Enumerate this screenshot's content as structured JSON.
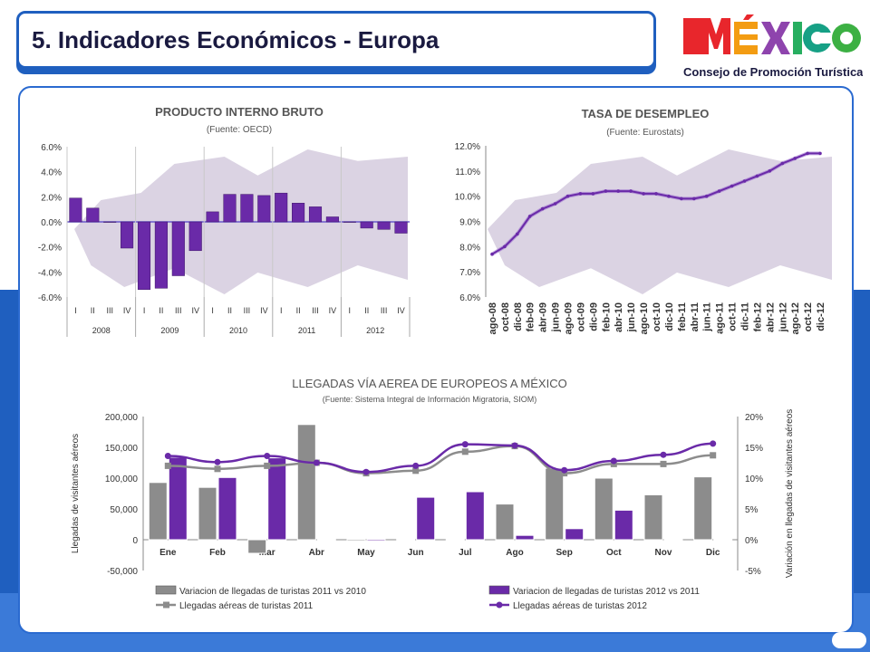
{
  "header": {
    "title": "5. Indicadores Económicos - Europa",
    "logo_word": "MÉXICO",
    "logo_sub": "Consejo de Promoción Turística"
  },
  "colors": {
    "primary_blue": "#1f5fbf",
    "purple": "#6a2aa8",
    "purple_light": "#8e57c9",
    "gray": "#8c8c8c",
    "map": "#cfc4da"
  },
  "chart_data": [
    {
      "type": "bar",
      "title": "PRODUCTO INTERNO BRUTO",
      "subtitle": "(Fuente: OECD)",
      "ylim": [
        -6,
        6
      ],
      "ytick_labels": [
        "6.0%",
        "4.0%",
        "2.0%",
        "0.0%",
        "-2.0%",
        "-4.0%",
        "-6.0%"
      ],
      "ytick_values": [
        6,
        4,
        2,
        0,
        -2,
        -4,
        -6
      ],
      "quarter_labels": [
        "I",
        "II",
        "III",
        "IV"
      ],
      "years": [
        "2008",
        "2009",
        "2010",
        "2011",
        "2012"
      ],
      "values": [
        1.9,
        1.1,
        0.0,
        -2.1,
        -5.4,
        -5.3,
        -4.3,
        -2.3,
        0.8,
        2.2,
        2.2,
        2.1,
        2.3,
        1.5,
        1.2,
        0.4,
        0.0,
        -0.5,
        -0.6,
        -0.9
      ]
    },
    {
      "type": "line",
      "title": "TASA DE DESEMPLEO",
      "subtitle": "(Fuente: Eurostats)",
      "ylim": [
        6,
        12
      ],
      "ytick_labels": [
        "12.0%",
        "11.0%",
        "10.0%",
        "9.0%",
        "8.0%",
        "7.0%",
        "6.0%"
      ],
      "ytick_values": [
        12,
        11,
        10,
        9,
        8,
        7,
        6
      ],
      "x": [
        "ago-08",
        "oct-08",
        "dic-08",
        "feb-09",
        "abr-09",
        "jun-09",
        "ago-09",
        "oct-09",
        "dic-09",
        "feb-10",
        "abr-10",
        "jun-10",
        "ago-10",
        "oct-10",
        "dic-10",
        "feb-11",
        "abr-11",
        "jun-11",
        "ago-11",
        "oct-11",
        "dic-11",
        "feb-12",
        "abr-12",
        "jun-12",
        "ago-12",
        "oct-12",
        "dic-12"
      ],
      "values": [
        7.7,
        8.0,
        8.5,
        9.2,
        9.5,
        9.7,
        10.0,
        10.1,
        10.1,
        10.2,
        10.2,
        10.2,
        10.1,
        10.1,
        10.0,
        9.9,
        9.9,
        10.0,
        10.2,
        10.4,
        10.6,
        10.8,
        11.0,
        11.3,
        11.5,
        11.7,
        11.7
      ]
    },
    {
      "type": "bar",
      "title": "LLEGADAS VÍA AEREA DE EUROPEOS A MÉXICO",
      "subtitle": "(Fuente: Sistema Integral de Información Migratoria, SIOM)",
      "ylabel": "Llegadas de visitantes aéreos",
      "y2label": "Variación en llegadas de visitantes aéreos",
      "ylim": [
        -50000,
        200000
      ],
      "y2lim": [
        -5,
        20
      ],
      "ytick_labels": [
        "200,000",
        "150,000",
        "100,000",
        "50,000",
        "0",
        "-50,000"
      ],
      "ytick_values": [
        200000,
        150000,
        100000,
        50000,
        0,
        -50000
      ],
      "y2tick_labels": [
        "20%",
        "15%",
        "10%",
        "5%",
        "0%",
        "-5%"
      ],
      "y2tick_values": [
        20,
        15,
        10,
        5,
        0,
        -5
      ],
      "categories": [
        "Ene",
        "Feb",
        "Mar",
        "Abr",
        "May",
        "Jun",
        "Jul",
        "Ago",
        "Sep",
        "Oct",
        "Nov",
        "Dic"
      ],
      "series": [
        {
          "name": "Variacion de llegadas de turistas 2011 vs 2010",
          "kind": "bar",
          "axis": "left",
          "values": [
            93000,
            85000,
            -22000,
            187000,
            -2000,
            1000,
            0,
            58000,
            116000,
            100000,
            73000,
            102000
          ]
        },
        {
          "name": "Variacion de llegadas de turistas 2012 vs 2011",
          "kind": "bar",
          "axis": "left",
          "values": [
            134000,
            101000,
            133000,
            0,
            -2000,
            69000,
            78000,
            7000,
            18000,
            48000,
            0,
            0
          ]
        },
        {
          "name": "Llegadas aéreas de turistas 2011",
          "kind": "line",
          "axis": "right",
          "values": [
            12.0,
            11.5,
            12.0,
            12.5,
            10.8,
            11.2,
            14.3,
            15.2,
            10.8,
            12.3,
            12.3,
            13.7
          ]
        },
        {
          "name": "Llegadas aéreas de turistas 2012",
          "kind": "line",
          "axis": "right",
          "values": [
            13.6,
            12.6,
            13.6,
            12.5,
            11.0,
            12.0,
            15.5,
            15.3,
            11.3,
            12.8,
            13.8,
            15.6
          ]
        }
      ]
    }
  ]
}
